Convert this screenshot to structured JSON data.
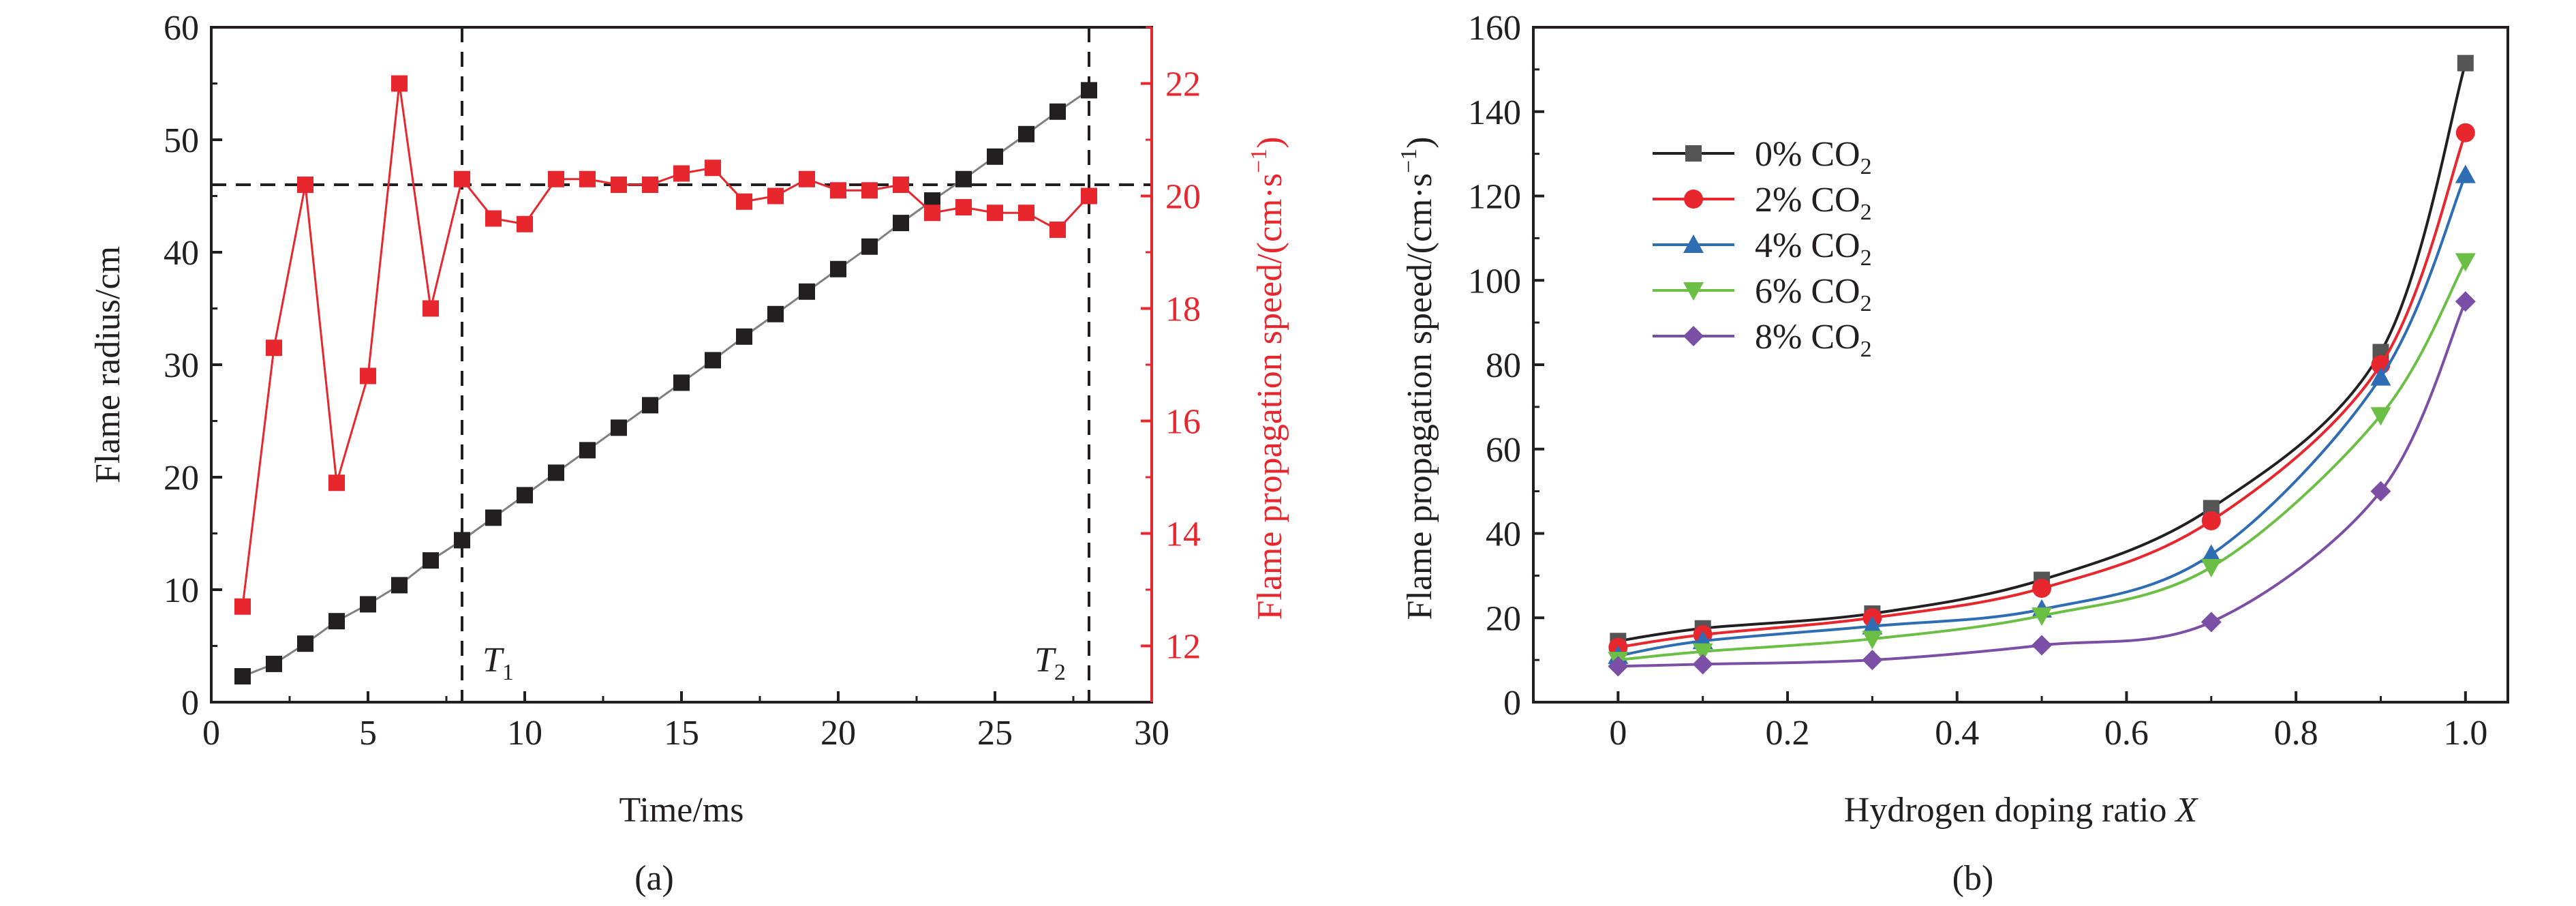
{
  "colors": {
    "black": "#231f20",
    "red": "#e8262d",
    "gray_line": "#808080",
    "blue": "#2e6db4",
    "green": "#6cbf45",
    "purple": "#7b4fa6"
  },
  "panel_a": {
    "caption": "(a)",
    "reference_lines": {
      "t1": {
        "x": 8,
        "label_main": "T",
        "label_sub": "1"
      },
      "t2": {
        "x": 28,
        "label_main": "T",
        "label_sub": "2"
      },
      "speed_level": 20.2
    }
  },
  "panel_b": {
    "caption": "(b)"
  },
  "chart_data": [
    {
      "type": "scatter",
      "xlabel": "Time/ms",
      "ylabel": "Flame radius/cm",
      "y2label": "Flame propagation speed/(cm·s",
      "y2label_sup": "−1",
      "y2label_close": ")",
      "xlim": [
        0,
        30
      ],
      "ylim": [
        0,
        60
      ],
      "y2lim": [
        11,
        23
      ],
      "xticks": [
        "0",
        "5",
        "10",
        "15",
        "20",
        "25",
        "30"
      ],
      "yticks": [
        "0",
        "10",
        "20",
        "30",
        "40",
        "50",
        "60"
      ],
      "y2ticks": [
        "12",
        "14",
        "16",
        "18",
        "20",
        "22"
      ],
      "series": [
        {
          "axis": "left",
          "x": [
            1,
            2,
            3,
            4,
            5,
            6,
            7,
            8,
            9,
            10,
            11,
            12,
            13,
            14,
            15,
            16,
            17,
            18,
            19,
            20,
            21,
            22,
            23,
            24,
            25,
            26,
            27,
            28
          ],
          "values": [
            2.3,
            3.4,
            5.2,
            7.2,
            8.7,
            10.4,
            12.6,
            14.4,
            16.4,
            18.4,
            20.4,
            22.4,
            24.4,
            26.4,
            28.4,
            30.4,
            32.5,
            34.5,
            36.5,
            38.5,
            40.5,
            42.6,
            44.6,
            46.5,
            48.5,
            50.5,
            52.5,
            54.4
          ]
        },
        {
          "axis": "right",
          "x": [
            1,
            2,
            3,
            4,
            5,
            6,
            7,
            8,
            9,
            10,
            11,
            12,
            13,
            14,
            15,
            16,
            17,
            18,
            19,
            20,
            21,
            22,
            23,
            24,
            25,
            26,
            27,
            28
          ],
          "values": [
            12.7,
            17.3,
            20.2,
            14.9,
            16.8,
            22.0,
            18.0,
            20.3,
            19.6,
            19.5,
            20.3,
            20.3,
            20.2,
            20.2,
            20.4,
            20.5,
            19.9,
            20.0,
            20.3,
            20.1,
            20.1,
            20.2,
            19.7,
            19.8,
            19.7,
            19.7,
            19.4,
            20.0
          ]
        }
      ]
    },
    {
      "type": "line",
      "xlabel": "Hydrogen doping ratio ",
      "xlabel_var": "X",
      "ylabel": "Flame propagation speed/(cm·s",
      "ylabel_sup": "−1",
      "ylabel_close": ")",
      "xlim": [
        -0.1,
        1.05
      ],
      "ylim": [
        0,
        160
      ],
      "xticks": [
        "0",
        "0.2",
        "0.4",
        "0.6",
        "0.8",
        "1.0"
      ],
      "yticks": [
        "0",
        "20",
        "40",
        "60",
        "80",
        "100",
        "120",
        "140",
        "160"
      ],
      "legend": "top-left",
      "x": [
        0,
        0.1,
        0.3,
        0.5,
        0.7,
        0.9,
        1.0
      ],
      "series": [
        {
          "name": "0% CO",
          "name_sub": "2",
          "marker": "square",
          "color": "#231f20",
          "fill": "#555555",
          "values": [
            14.5,
            17.5,
            21.0,
            29.0,
            46.0,
            83.0,
            151.5
          ]
        },
        {
          "name": "2% CO",
          "name_sub": "2",
          "marker": "circle",
          "color": "#e8262d",
          "fill": "#e8262d",
          "values": [
            13.0,
            16.0,
            20.0,
            27.0,
            43.0,
            80.0,
            135.0
          ]
        },
        {
          "name": "4% CO",
          "name_sub": "2",
          "marker": "triangle-up",
          "color": "#2e6db4",
          "fill": "#2e6db4",
          "values": [
            11.0,
            14.5,
            18.0,
            22.0,
            35.0,
            77.0,
            125.0
          ]
        },
        {
          "name": "6% CO",
          "name_sub": "2",
          "marker": "triangle-down",
          "color": "#6cbf45",
          "fill": "#6cbf45",
          "values": [
            10.0,
            12.0,
            15.0,
            20.5,
            32.0,
            68.0,
            104.5
          ]
        },
        {
          "name": "8% CO",
          "name_sub": "2",
          "marker": "diamond",
          "color": "#7b4fa6",
          "fill": "#7b4fa6",
          "values": [
            8.5,
            9.0,
            10.0,
            13.5,
            19.0,
            50.0,
            95.0
          ]
        }
      ]
    }
  ]
}
